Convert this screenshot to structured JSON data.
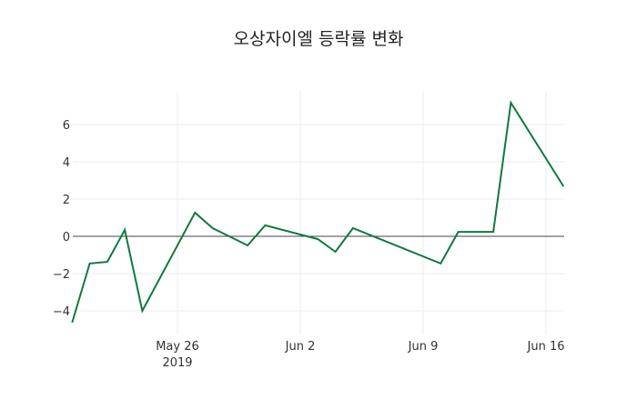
{
  "chart_data": {
    "type": "line",
    "title": "오상자이엘 등락률 변화",
    "xlabel": "",
    "ylabel": "",
    "x": [
      "2019-05-20",
      "2019-05-21",
      "2019-05-22",
      "2019-05-23",
      "2019-05-24",
      "2019-05-27",
      "2019-05-28",
      "2019-05-30",
      "2019-05-31",
      "2019-06-03",
      "2019-06-04",
      "2019-06-05",
      "2019-06-10",
      "2019-06-11",
      "2019-06-13",
      "2019-06-14",
      "2019-06-17"
    ],
    "series": [
      {
        "name": "등락률",
        "color": "#10793f",
        "values": [
          -4.63,
          -1.46,
          -1.37,
          0.34,
          -4.0,
          1.27,
          0.44,
          -0.49,
          0.59,
          -0.15,
          -0.83,
          0.44,
          -1.46,
          0.24,
          0.24,
          7.17,
          2.68
        ]
      }
    ],
    "ylim": [
      -5.1,
      7.8
    ],
    "yticks": [
      6,
      4,
      2,
      0,
      -2,
      -4
    ],
    "ytick_labels": [
      "6",
      "4",
      "2",
      "0",
      "−2",
      "−4"
    ],
    "xticks": [
      {
        "date": "2019-05-26",
        "label": "May 26",
        "sublabel": "2019"
      },
      {
        "date": "2019-06-02",
        "label": "Jun 2",
        "sublabel": ""
      },
      {
        "date": "2019-06-09",
        "label": "Jun 9",
        "sublabel": ""
      },
      {
        "date": "2019-06-16",
        "label": "Jun 16",
        "sublabel": ""
      }
    ],
    "grid": true,
    "legend": false
  }
}
